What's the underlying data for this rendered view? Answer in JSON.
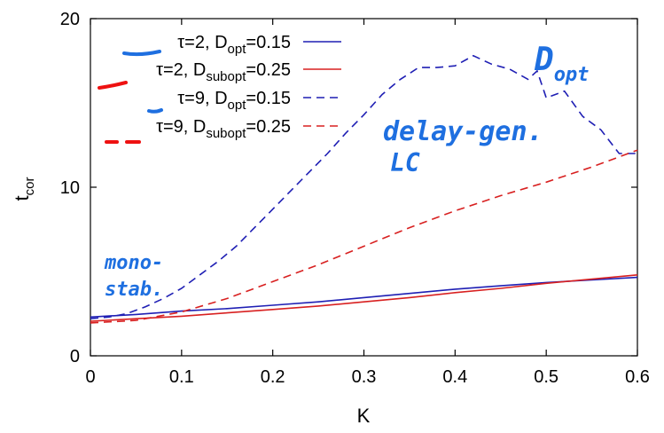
{
  "chart_data": {
    "type": "line",
    "xlabel": "K",
    "ylabel": "t",
    "ylabel_sub": "cor",
    "xlim": [
      0,
      0.6
    ],
    "ylim": [
      0,
      20
    ],
    "x_ticks": [
      "0",
      "0.1",
      "0.2",
      "0.3",
      "0.4",
      "0.5",
      "0.6"
    ],
    "y_ticks": [
      "0",
      "10",
      "20"
    ],
    "grid": false,
    "legend_position": "top-left",
    "series": [
      {
        "name": "τ=2, D_opt=0.15",
        "legend": {
          "main": "τ=2, D",
          "sub": "opt",
          "tail": "=0.15"
        },
        "color": "#1f1fb4",
        "dash": "solid",
        "x": [
          0,
          0.05,
          0.1,
          0.15,
          0.2,
          0.25,
          0.3,
          0.35,
          0.4,
          0.45,
          0.5,
          0.55,
          0.6
        ],
        "y": [
          2.3,
          2.45,
          2.65,
          2.8,
          3.0,
          3.2,
          3.45,
          3.7,
          3.95,
          4.15,
          4.35,
          4.5,
          4.65
        ]
      },
      {
        "name": "τ=2, D_subopt=0.25",
        "legend": {
          "main": "τ=2, D",
          "sub": "subopt",
          "tail": "=0.25"
        },
        "color": "#d82020",
        "dash": "solid",
        "x": [
          0,
          0.05,
          0.1,
          0.15,
          0.2,
          0.25,
          0.3,
          0.35,
          0.4,
          0.45,
          0.5,
          0.55,
          0.6
        ],
        "y": [
          2.05,
          2.2,
          2.35,
          2.55,
          2.75,
          2.95,
          3.2,
          3.45,
          3.75,
          4.0,
          4.3,
          4.55,
          4.8
        ]
      },
      {
        "name": "τ=9, D_opt=0.15",
        "legend": {
          "main": "τ=9, D",
          "sub": "opt",
          "tail": "=0.15"
        },
        "color": "#1f1fb4",
        "dash": "dashed",
        "x": [
          0,
          0.02,
          0.04,
          0.06,
          0.08,
          0.1,
          0.12,
          0.14,
          0.16,
          0.18,
          0.2,
          0.22,
          0.24,
          0.26,
          0.28,
          0.3,
          0.32,
          0.34,
          0.36,
          0.38,
          0.4,
          0.42,
          0.44,
          0.46,
          0.48,
          0.49,
          0.5,
          0.52,
          0.54,
          0.56,
          0.58,
          0.6
        ],
        "y": [
          2.2,
          2.3,
          2.5,
          2.9,
          3.4,
          4.0,
          4.8,
          5.6,
          6.5,
          7.6,
          8.7,
          9.8,
          10.9,
          12.0,
          13.2,
          14.3,
          15.5,
          16.4,
          17.1,
          17.1,
          17.2,
          17.8,
          17.3,
          17.0,
          16.4,
          16.9,
          15.3,
          15.7,
          14.2,
          13.4,
          12.0,
          12.0
        ]
      },
      {
        "name": "τ=9, D_subopt=0.25",
        "legend": {
          "main": "τ=9, D",
          "sub": "subopt",
          "tail": "=0.25"
        },
        "color": "#d82020",
        "dash": "dashed",
        "x": [
          0,
          0.05,
          0.1,
          0.15,
          0.2,
          0.25,
          0.3,
          0.35,
          0.4,
          0.45,
          0.5,
          0.55,
          0.6
        ],
        "y": [
          1.95,
          2.1,
          2.6,
          3.4,
          4.4,
          5.4,
          6.5,
          7.6,
          8.6,
          9.5,
          10.3,
          11.2,
          12.2
        ]
      }
    ]
  },
  "annotations": {
    "top_right": {
      "main": "D",
      "sub": "opt"
    },
    "middle_line1": "delay-gen.",
    "middle_line2": "LC",
    "bottom_left_line1": "mono-",
    "bottom_left_line2": "stab.",
    "color": "#1e6fe0"
  }
}
